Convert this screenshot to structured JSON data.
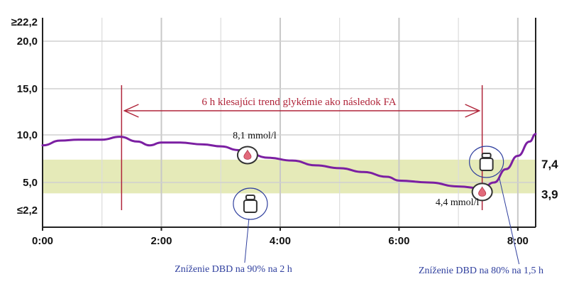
{
  "chart_data": {
    "type": "line",
    "title": "",
    "xlabel": "",
    "ylabel": "",
    "x_ticks": [
      "0:00",
      "2:00",
      "4:00",
      "6:00",
      "8:00"
    ],
    "y_ticks": [
      "≤2,2",
      "5,0",
      "10,0",
      "15,0",
      "20,0",
      "≥22,2"
    ],
    "right_ticks": [
      "7,4",
      "3,9"
    ],
    "target_range": [
      3.9,
      7.4
    ],
    "xlim_hours": [
      0,
      8.3
    ],
    "ylim": [
      2.2,
      22.2
    ],
    "grid": true,
    "series": [
      {
        "color": "#7b1fa2",
        "x": [
          0.0,
          0.3,
          0.6,
          1.0,
          1.3,
          1.6,
          1.8,
          2.0,
          2.3,
          2.7,
          3.0,
          3.3,
          3.45,
          3.8,
          4.2,
          4.6,
          5.0,
          5.4,
          5.8,
          6.0,
          6.5,
          7.0,
          7.4,
          7.6,
          7.8,
          8.0,
          8.2,
          8.3
        ],
        "y": [
          8.9,
          9.4,
          9.5,
          9.5,
          9.8,
          9.3,
          8.9,
          9.2,
          9.2,
          9.0,
          8.8,
          8.4,
          8.1,
          7.6,
          7.3,
          6.8,
          6.5,
          6.1,
          5.6,
          5.2,
          5.0,
          4.6,
          4.4,
          5.0,
          6.4,
          7.8,
          9.3,
          10.1
        ]
      }
    ],
    "annotations": {
      "trend_label": "6 h klesajúci trend glykémie ako následok FA",
      "trend_start_hours": 1.33,
      "trend_end_hours": 7.4,
      "reading_1_label": "8,1 mmol/l",
      "reading_1": {
        "x": 3.45,
        "y": 8.1
      },
      "reading_2_label": "4,4 mmol/l",
      "reading_2": {
        "x": 7.4,
        "y": 4.4
      },
      "basal_1_label": "Zníženie DBD na 90% na 2 h",
      "basal_1_hours": 3.45,
      "basal_2_label": "Zníženie DBD na 80% na 1,5 h",
      "basal_2_hours": 7.4
    },
    "colors": {
      "line": "#7b1fa2",
      "target_band": "#e5eab8",
      "trend": "#b0253a",
      "basal": "#2f3f9e"
    }
  }
}
